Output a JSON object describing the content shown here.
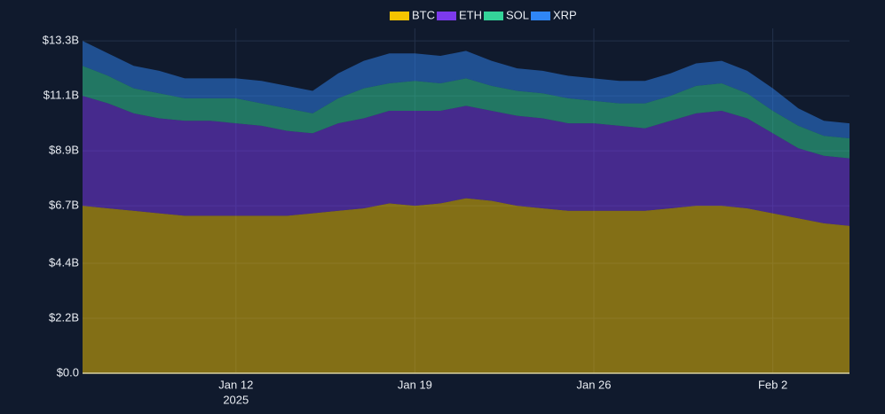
{
  "chart_data": {
    "type": "area",
    "stacked": true,
    "x": [
      "2025-01-06",
      "2025-01-07",
      "2025-01-08",
      "2025-01-09",
      "2025-01-10",
      "2025-01-11",
      "2025-01-12",
      "2025-01-13",
      "2025-01-14",
      "2025-01-15",
      "2025-01-16",
      "2025-01-17",
      "2025-01-18",
      "2025-01-19",
      "2025-01-20",
      "2025-01-21",
      "2025-01-22",
      "2025-01-23",
      "2025-01-24",
      "2025-01-25",
      "2025-01-26",
      "2025-01-27",
      "2025-01-28",
      "2025-01-29",
      "2025-01-30",
      "2025-01-31",
      "2025-02-01",
      "2025-02-02",
      "2025-02-03",
      "2025-02-04",
      "2025-02-05"
    ],
    "xlim": [
      "2025-01-06",
      "2025-02-05"
    ],
    "xticks": [
      {
        "value": "2025-01-12",
        "label": "Jan 12"
      },
      {
        "value": "2025-01-19",
        "label": "Jan 19"
      },
      {
        "value": "2025-01-26",
        "label": "Jan 26"
      },
      {
        "value": "2025-02-02",
        "label": "Feb 2"
      }
    ],
    "x_year_label": {
      "value": "2025-01-12",
      "label": "2025"
    },
    "ylim": [
      0,
      13.8
    ],
    "yticks": [
      {
        "value": 0,
        "label": "$0.0"
      },
      {
        "value": 2.2,
        "label": "$2.2B"
      },
      {
        "value": 4.4,
        "label": "$4.4B"
      },
      {
        "value": 6.7,
        "label": "$6.7B"
      },
      {
        "value": 8.9,
        "label": "$8.9B"
      },
      {
        "value": 11.1,
        "label": "$11.1B"
      },
      {
        "value": 13.3,
        "label": "$13.3B"
      }
    ],
    "grid": true,
    "legend": "top",
    "series": [
      {
        "name": "BTC",
        "color": "#f5c400",
        "values": [
          6.7,
          6.6,
          6.5,
          6.4,
          6.3,
          6.3,
          6.3,
          6.3,
          6.3,
          6.4,
          6.5,
          6.6,
          6.8,
          6.7,
          6.8,
          7.0,
          6.9,
          6.7,
          6.6,
          6.5,
          6.5,
          6.5,
          6.5,
          6.6,
          6.7,
          6.7,
          6.6,
          6.4,
          6.2,
          6.0,
          5.9
        ]
      },
      {
        "name": "ETH",
        "color": "#7c3aed",
        "values": [
          4.4,
          4.2,
          3.9,
          3.8,
          3.8,
          3.8,
          3.7,
          3.6,
          3.4,
          3.2,
          3.5,
          3.6,
          3.7,
          3.8,
          3.7,
          3.7,
          3.6,
          3.6,
          3.6,
          3.5,
          3.5,
          3.4,
          3.3,
          3.5,
          3.7,
          3.8,
          3.6,
          3.2,
          2.8,
          2.7,
          2.7
        ]
      },
      {
        "name": "SOL",
        "color": "#34d399",
        "values": [
          1.2,
          1.1,
          1.0,
          1.0,
          0.9,
          0.9,
          1.0,
          0.9,
          0.9,
          0.8,
          1.0,
          1.2,
          1.1,
          1.2,
          1.1,
          1.1,
          1.0,
          1.0,
          1.0,
          1.0,
          0.9,
          0.9,
          1.0,
          1.0,
          1.1,
          1.1,
          1.0,
          0.9,
          0.9,
          0.8,
          0.8
        ]
      },
      {
        "name": "XRP",
        "color": "#2f86f6",
        "values": [
          1.0,
          0.9,
          0.9,
          0.9,
          0.8,
          0.8,
          0.8,
          0.9,
          0.9,
          0.9,
          1.0,
          1.1,
          1.2,
          1.1,
          1.1,
          1.1,
          1.0,
          0.9,
          0.9,
          0.9,
          0.9,
          0.9,
          0.9,
          0.9,
          0.9,
          0.9,
          0.9,
          0.9,
          0.7,
          0.6,
          0.6
        ]
      }
    ]
  }
}
